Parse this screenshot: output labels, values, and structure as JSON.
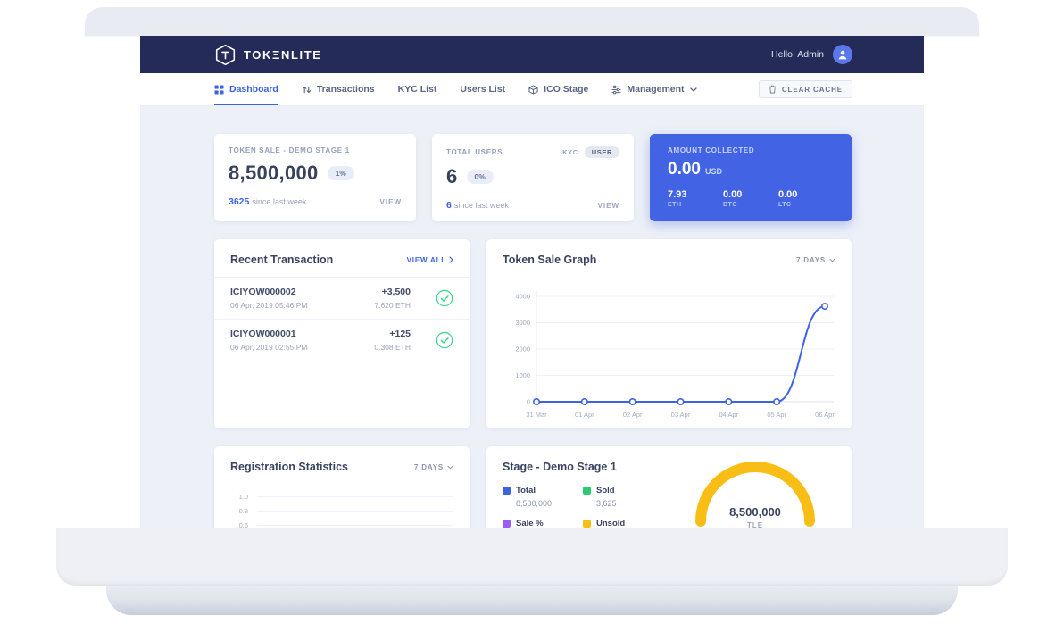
{
  "header": {
    "brand": "TOKΞNLITE",
    "greeting": "Hello! Admin"
  },
  "nav": {
    "items": [
      {
        "label": "Dashboard",
        "active": true
      },
      {
        "label": "Transactions",
        "active": false
      },
      {
        "label": "KYC List",
        "active": false
      },
      {
        "label": "Users List",
        "active": false
      },
      {
        "label": "ICO Stage",
        "active": false
      },
      {
        "label": "Management",
        "active": false
      }
    ],
    "clear_cache": "CLEAR CACHE"
  },
  "cards": {
    "token_sale": {
      "title": "TOKEN SALE - DEMO STAGE 1",
      "value": "8,500,000",
      "badge": "1%",
      "delta_value": "3625",
      "delta_text": "since last week",
      "view": "VIEW"
    },
    "total_users": {
      "title": "TOTAL USERS",
      "kyc_label": "KYC",
      "user_label": "USER",
      "value": "6",
      "badge": "0%",
      "delta_value": "6",
      "delta_text": "since last week",
      "view": "VIEW"
    },
    "amount_collected": {
      "title": "AMOUNT COLLECTED",
      "value": "0.00",
      "currency": "USD",
      "coins": [
        {
          "value": "7.93",
          "label": "ETH"
        },
        {
          "value": "0.00",
          "label": "BTC"
        },
        {
          "value": "0.00",
          "label": "LTC"
        }
      ]
    }
  },
  "transactions": {
    "title": "Recent Transaction",
    "view_all": "VIEW ALL",
    "rows": [
      {
        "id": "ICIYOW000002",
        "date": "06 Apr, 2019 05:46 PM",
        "amount": "+3,500",
        "eth": "7.620 ETH"
      },
      {
        "id": "ICIYOW000001",
        "date": "06 Apr, 2019 02:55 PM",
        "amount": "+125",
        "eth": "0.308 ETH"
      }
    ]
  },
  "token_graph": {
    "title": "Token Sale Graph",
    "range": "7 DAYS"
  },
  "registration": {
    "title": "Registration Statistics",
    "range": "7 DAYS"
  },
  "stage": {
    "title": "Stage - Demo Stage 1",
    "legend": [
      {
        "label": "Total",
        "value": "8,500,000",
        "color": "#3e63e2"
      },
      {
        "label": "Sold",
        "value": "3,625",
        "color": "#2dca73"
      },
      {
        "label": "Sale %",
        "value": "",
        "color": "#9a5cf5"
      },
      {
        "label": "Unsold",
        "value": "",
        "color": "#f9be16"
      }
    ],
    "center_value": "8,500,000",
    "center_label": "TLE"
  },
  "chart_data": [
    {
      "id": "token_sale_graph",
      "type": "line",
      "title": "Token Sale Graph",
      "x": [
        "31 Mar",
        "01 Apr",
        "02 Apr",
        "03 Apr",
        "04 Apr",
        "05 Apr",
        "06 Apr"
      ],
      "values": [
        0,
        0,
        0,
        0,
        0,
        0,
        3625
      ],
      "ylim": [
        0,
        4000
      ],
      "yticks": [
        0,
        1000,
        2000,
        3000,
        4000
      ],
      "line_color": "#3e63e2",
      "grid": true,
      "range_label": "7 DAYS"
    },
    {
      "id": "registration_statistics",
      "type": "line",
      "title": "Registration Statistics",
      "yticks_visible": [
        "1.0",
        "0.8",
        "0.6"
      ],
      "range_label": "7 DAYS",
      "partially_visible": true
    },
    {
      "id": "stage_distribution",
      "type": "gauge",
      "title": "Stage - Demo Stage 1",
      "total": 8500000,
      "sold": 3625,
      "center_value": "8,500,000",
      "center_unit": "TLE",
      "colors": {
        "total": "#3e63e2",
        "sold": "#2dca73",
        "sale_pct": "#9a5cf5",
        "unsold": "#f9be16"
      }
    }
  ]
}
